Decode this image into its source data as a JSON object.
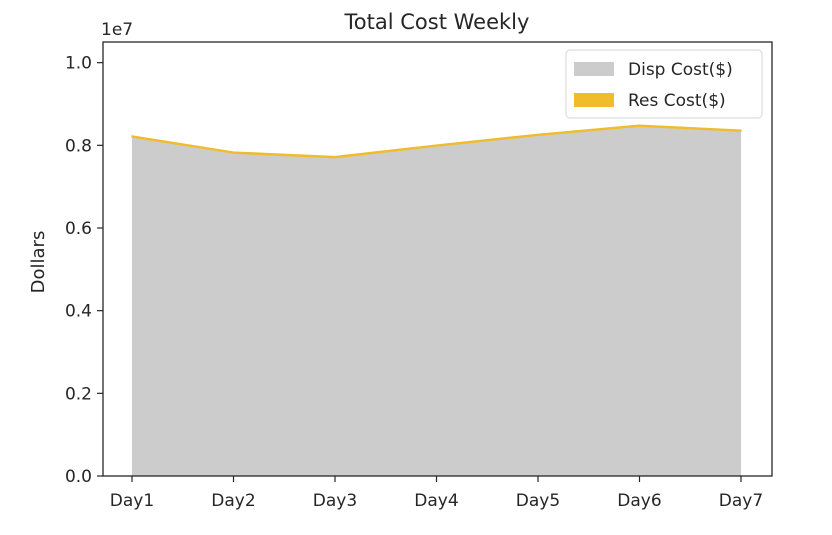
{
  "chart_data": {
    "type": "area",
    "title": "Total Cost Weekly",
    "ylabel": "Dollars",
    "xlabel": "",
    "scale_label": "1e7",
    "categories": [
      "Day1",
      "Day2",
      "Day3",
      "Day4",
      "Day5",
      "Day6",
      "Day7"
    ],
    "stacked": true,
    "series": [
      {
        "name": "Disp Cost($)",
        "color": "#cccccc",
        "values": [
          8200000,
          7810000,
          7700000,
          7980000,
          8240000,
          8460000,
          8340000
        ]
      },
      {
        "name": "Res Cost($)",
        "color": "#f0bc2c",
        "values": [
          30000,
          30000,
          30000,
          30000,
          30000,
          30000,
          30000
        ]
      }
    ],
    "ylim": [
      0,
      10500000
    ],
    "yticks": [
      0,
      2000000,
      4000000,
      6000000,
      8000000,
      10000000
    ],
    "ytick_labels": [
      "0.0",
      "0.2",
      "0.4",
      "0.6",
      "0.8",
      "1.0"
    ],
    "grid": false,
    "legend_position": "top-right"
  }
}
